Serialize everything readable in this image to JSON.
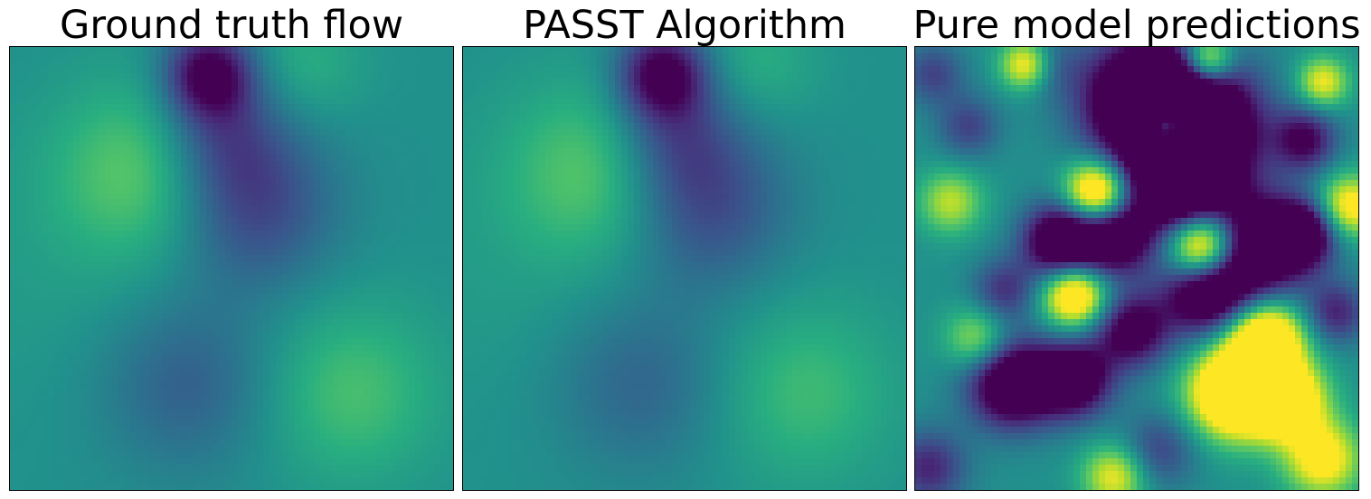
{
  "chart_data": [
    {
      "type": "heatmap",
      "title": "Ground truth flow",
      "colormap": "viridis",
      "axes_ticks": "none",
      "field": {
        "background": 0.5,
        "blobs": [
          {
            "x": 0.45,
            "y": 0.06,
            "r": 0.07,
            "a": -0.55
          },
          {
            "x": 0.55,
            "y": 0.36,
            "r": 0.13,
            "a": -0.3
          },
          {
            "x": 0.48,
            "y": 0.2,
            "r": 0.1,
            "a": -0.25
          },
          {
            "x": 0.3,
            "y": 0.28,
            "r": 0.14,
            "a": 0.25
          },
          {
            "x": 0.67,
            "y": 0.04,
            "r": 0.09,
            "a": 0.12
          },
          {
            "x": 0.4,
            "y": 0.76,
            "r": 0.14,
            "a": -0.2
          },
          {
            "x": 0.77,
            "y": 0.78,
            "r": 0.14,
            "a": 0.2
          },
          {
            "x": 0.1,
            "y": 0.52,
            "r": 0.22,
            "a": 0.04
          }
        ]
      }
    },
    {
      "type": "heatmap",
      "title": "PASST Algorithm",
      "colormap": "viridis",
      "axes_ticks": "none",
      "field": {
        "background": 0.5,
        "blobs": [
          {
            "x": 0.45,
            "y": 0.06,
            "r": 0.07,
            "a": -0.55
          },
          {
            "x": 0.55,
            "y": 0.36,
            "r": 0.13,
            "a": -0.28
          },
          {
            "x": 0.48,
            "y": 0.2,
            "r": 0.1,
            "a": -0.25
          },
          {
            "x": 0.3,
            "y": 0.28,
            "r": 0.14,
            "a": 0.24
          },
          {
            "x": 0.67,
            "y": 0.04,
            "r": 0.09,
            "a": 0.12
          },
          {
            "x": 0.4,
            "y": 0.76,
            "r": 0.14,
            "a": -0.18
          },
          {
            "x": 0.77,
            "y": 0.78,
            "r": 0.14,
            "a": 0.18
          },
          {
            "x": 0.1,
            "y": 0.52,
            "r": 0.22,
            "a": 0.04
          }
        ]
      }
    },
    {
      "type": "heatmap",
      "title": "Pure model predictions",
      "colormap": "viridis",
      "axes_ticks": "none",
      "field": {
        "background": 0.5,
        "blobs": [
          {
            "x": 0.52,
            "y": 0.12,
            "r": 0.1,
            "a": -0.9
          },
          {
            "x": 0.64,
            "y": 0.18,
            "r": 0.1,
            "a": -0.9
          },
          {
            "x": 0.6,
            "y": 0.32,
            "r": 0.08,
            "a": -0.8
          },
          {
            "x": 0.45,
            "y": 0.43,
            "r": 0.06,
            "a": -0.7
          },
          {
            "x": 0.33,
            "y": 0.44,
            "r": 0.06,
            "a": -0.8
          },
          {
            "x": 0.22,
            "y": 0.76,
            "r": 0.07,
            "a": -0.8
          },
          {
            "x": 0.36,
            "y": 0.75,
            "r": 0.06,
            "a": -0.7
          },
          {
            "x": 0.49,
            "y": 0.64,
            "r": 0.06,
            "a": -0.6
          },
          {
            "x": 0.66,
            "y": 0.55,
            "r": 0.07,
            "a": -0.8
          },
          {
            "x": 0.78,
            "y": 0.45,
            "r": 0.08,
            "a": -0.8
          },
          {
            "x": 0.88,
            "y": 0.42,
            "r": 0.05,
            "a": -0.6
          },
          {
            "x": 0.88,
            "y": 0.21,
            "r": 0.05,
            "a": -0.5
          },
          {
            "x": 0.04,
            "y": 0.06,
            "r": 0.05,
            "a": -0.3
          },
          {
            "x": 0.03,
            "y": 0.95,
            "r": 0.06,
            "a": -0.4
          },
          {
            "x": 0.55,
            "y": 0.91,
            "r": 0.06,
            "a": -0.3
          },
          {
            "x": 0.3,
            "y": 0.04,
            "r": 0.05,
            "a": -0.2
          },
          {
            "x": 0.57,
            "y": 0.18,
            "r": 0.035,
            "a": 1.1
          },
          {
            "x": 0.41,
            "y": 0.33,
            "r": 0.05,
            "a": 0.9
          },
          {
            "x": 0.65,
            "y": 0.45,
            "r": 0.055,
            "a": 1.1
          },
          {
            "x": 0.36,
            "y": 0.56,
            "r": 0.05,
            "a": 0.8
          },
          {
            "x": 0.79,
            "y": 0.66,
            "r": 0.06,
            "a": 0.9
          },
          {
            "x": 0.72,
            "y": 0.78,
            "r": 0.07,
            "a": 1.0
          },
          {
            "x": 0.84,
            "y": 0.8,
            "r": 0.06,
            "a": 0.8
          },
          {
            "x": 0.92,
            "y": 0.93,
            "r": 0.06,
            "a": 0.6
          },
          {
            "x": 0.66,
            "y": 0.03,
            "r": 0.04,
            "a": 0.7
          },
          {
            "x": 0.25,
            "y": 0.04,
            "r": 0.04,
            "a": 0.6
          },
          {
            "x": 0.98,
            "y": 0.36,
            "r": 0.05,
            "a": 0.6
          },
          {
            "x": 0.08,
            "y": 0.35,
            "r": 0.05,
            "a": 0.4
          },
          {
            "x": 0.14,
            "y": 0.66,
            "r": 0.05,
            "a": 0.4
          },
          {
            "x": 0.92,
            "y": 0.08,
            "r": 0.04,
            "a": 0.5
          },
          {
            "x": 0.45,
            "y": 0.97,
            "r": 0.05,
            "a": 0.5
          },
          {
            "x": 0.2,
            "y": 0.55,
            "r": 0.05,
            "a": -0.35
          },
          {
            "x": 0.12,
            "y": 0.18,
            "r": 0.05,
            "a": -0.3
          },
          {
            "x": 0.95,
            "y": 0.6,
            "r": 0.05,
            "a": -0.4
          }
        ]
      }
    }
  ]
}
